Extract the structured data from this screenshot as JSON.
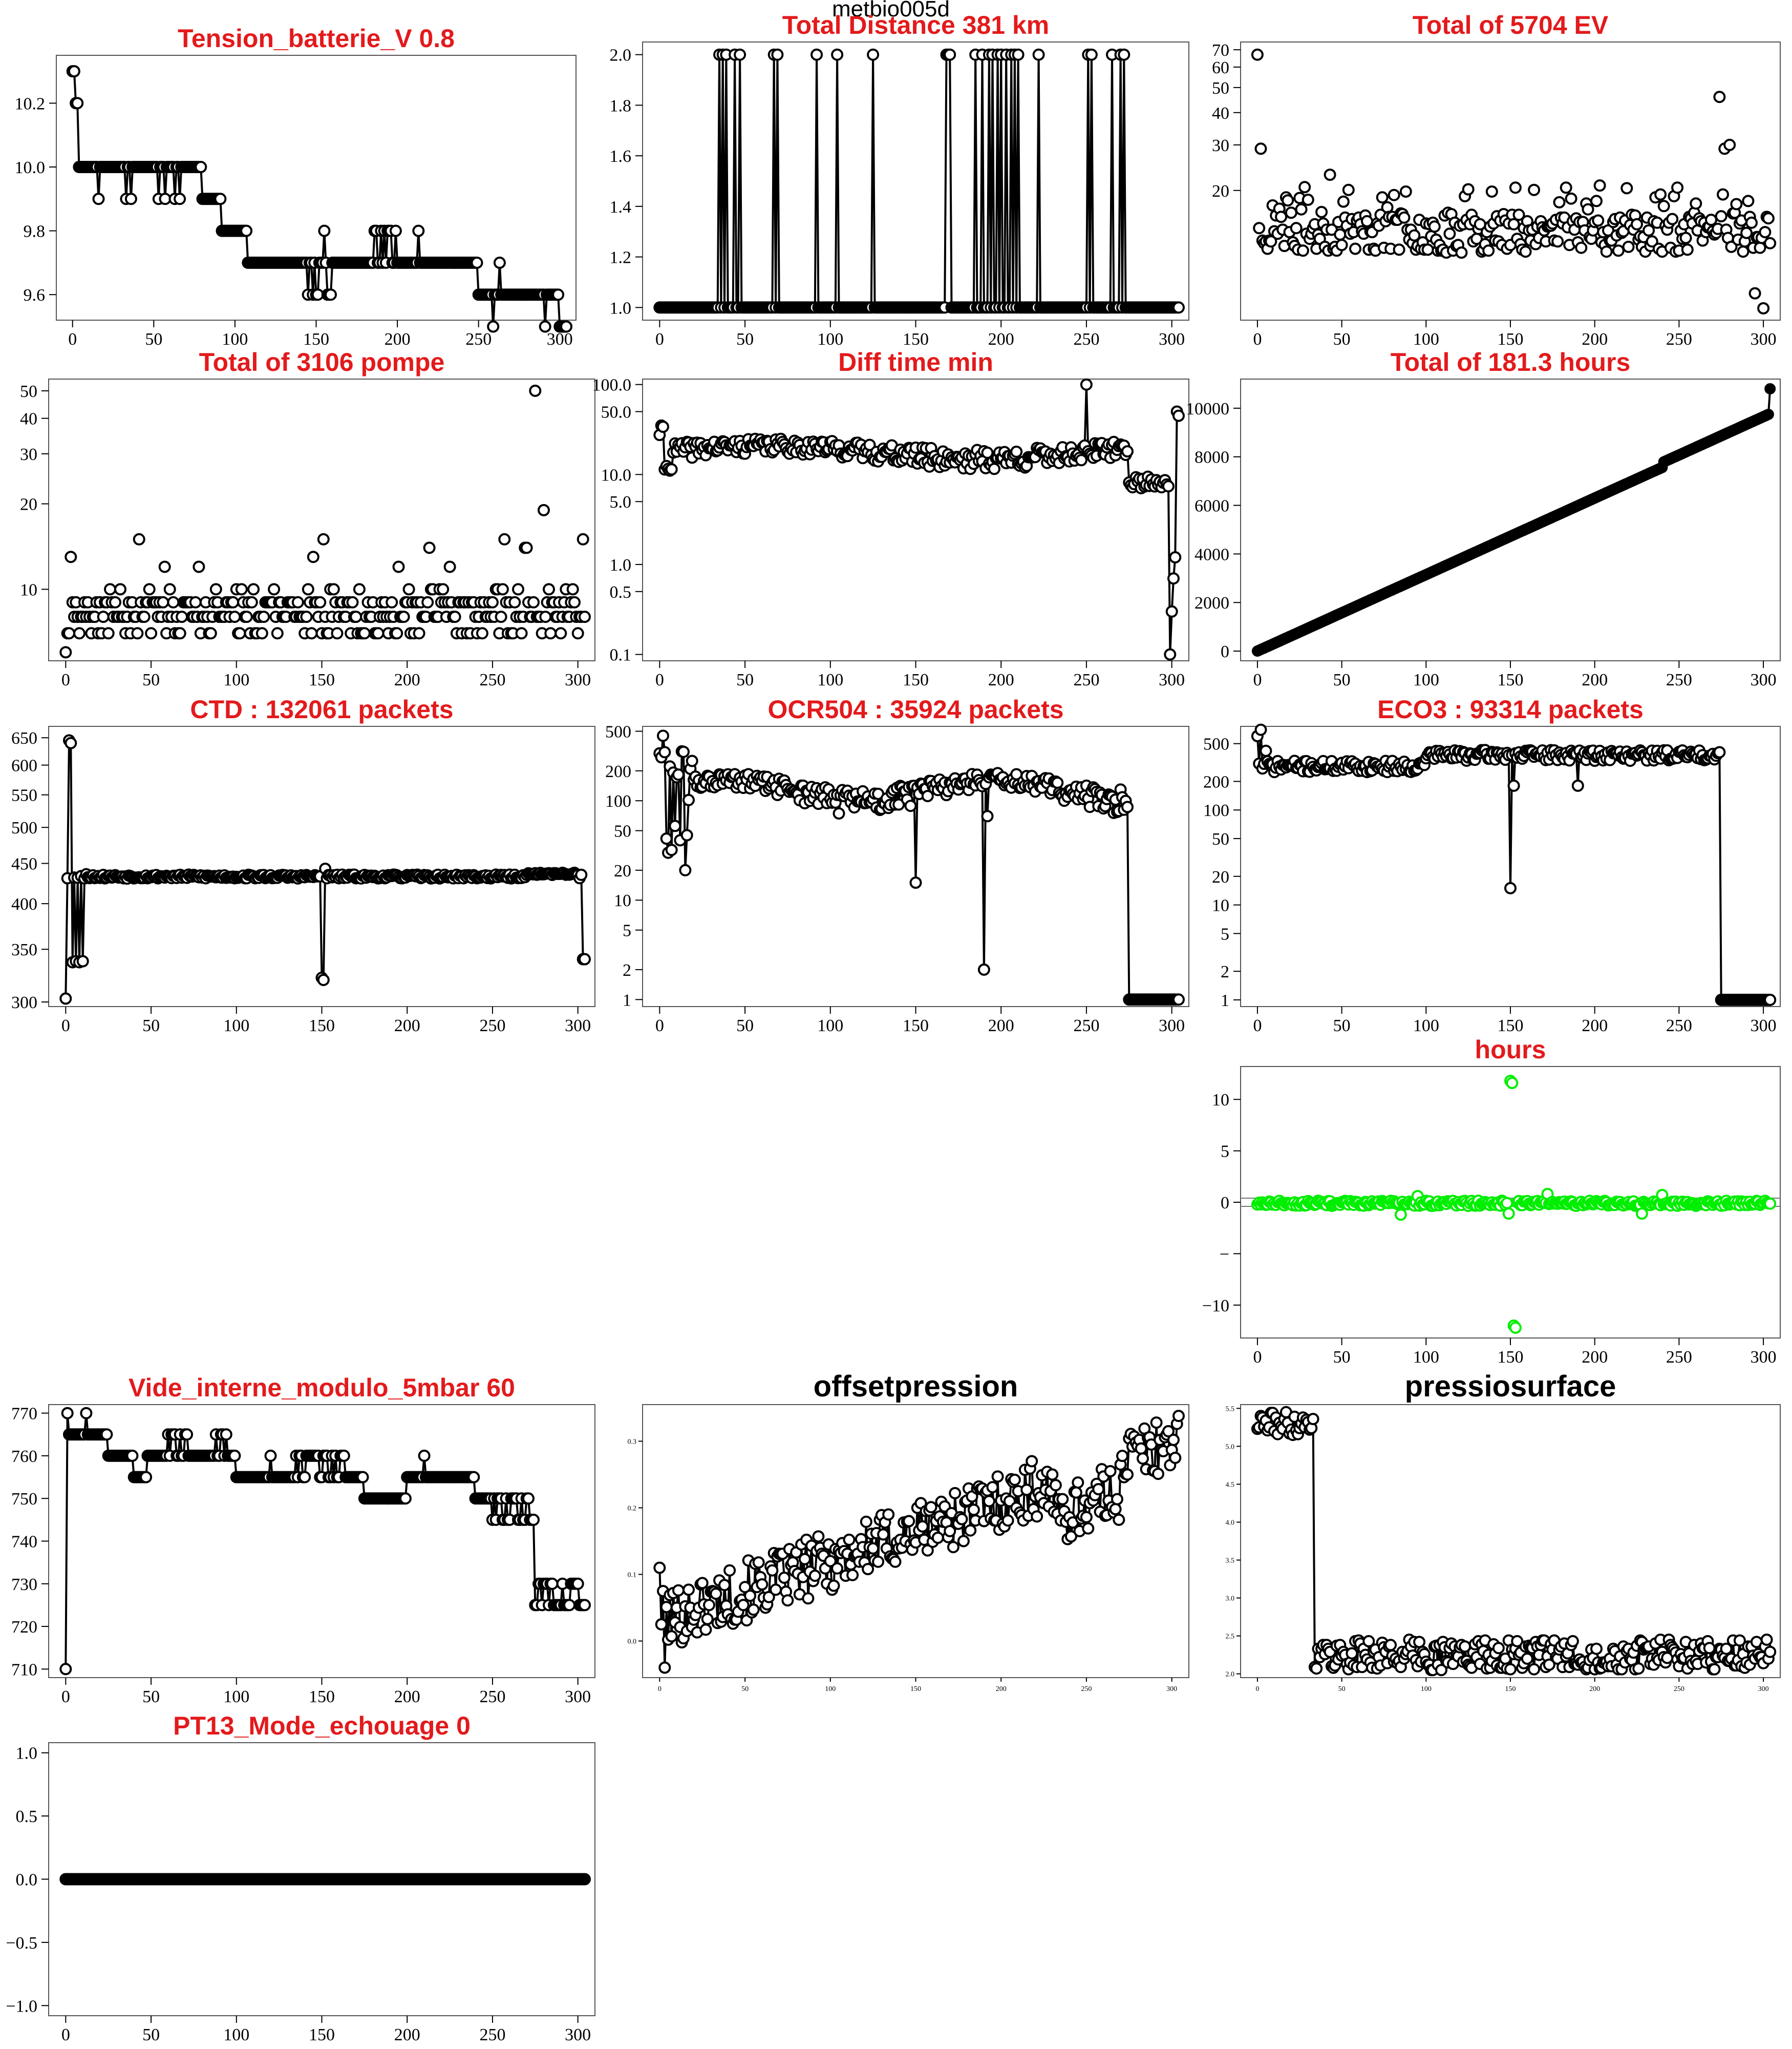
{
  "figure": {
    "title": "metbio005d"
  },
  "chart_data": [
    {
      "id": "tension",
      "type": "line",
      "title": "Tension_batterie_V 0.8",
      "xlim": [
        -10,
        310
      ],
      "ylim": [
        9.52,
        10.35
      ],
      "x_ticks": [
        0,
        50,
        100,
        150,
        200,
        250,
        300
      ],
      "y_ticks": [
        9.6,
        9.8,
        10.0,
        10.2
      ],
      "y_tick_labels": [
        "9.6",
        "9.8",
        "10.0",
        "10.2"
      ],
      "gen": "tension"
    },
    {
      "id": "distance",
      "type": "line",
      "title": "Total Distance  381  km",
      "xlim": [
        -10,
        310
      ],
      "ylim": [
        0.95,
        2.05
      ],
      "x_ticks": [
        0,
        50,
        100,
        150,
        200,
        250,
        300
      ],
      "y_ticks": [
        1.0,
        1.2,
        1.4,
        1.6,
        1.8,
        2.0
      ],
      "y_tick_labels": [
        "1.0",
        "1.2",
        "1.4",
        "1.6",
        "1.8",
        "2.0"
      ],
      "gen": "distance"
    },
    {
      "id": "ev",
      "type": "scatter",
      "title": "Total of  5704  EV",
      "log": true,
      "xlim": [
        -10,
        310
      ],
      "ylim": [
        6.3,
        75
      ],
      "x_ticks": [
        0,
        50,
        100,
        150,
        200,
        250,
        300
      ],
      "y_ticks": [
        20,
        30,
        40,
        50,
        60,
        70
      ],
      "y_tick_labels": [
        "20",
        "30",
        "40",
        "50",
        "60",
        "70"
      ],
      "gen": "ev"
    },
    {
      "id": "pompe",
      "type": "scatter",
      "title": "Total of  3106  pompe",
      "log": true,
      "xlim": [
        -10,
        310
      ],
      "ylim": [
        5.6,
        55
      ],
      "x_ticks": [
        0,
        50,
        100,
        150,
        200,
        250,
        300
      ],
      "y_ticks": [
        10,
        20,
        30,
        40,
        50
      ],
      "y_tick_labels": [
        "10",
        "20",
        "30",
        "40",
        "50"
      ],
      "gen": "pompe"
    },
    {
      "id": "difftime",
      "type": "line",
      "title": "Diff time min",
      "log": true,
      "xlim": [
        -10,
        310
      ],
      "ylim": [
        0.085,
        115
      ],
      "x_ticks": [
        0,
        50,
        100,
        150,
        200,
        250,
        300
      ],
      "y_ticks": [
        0.1,
        0.5,
        1.0,
        5.0,
        10.0,
        50.0,
        100.0
      ],
      "y_tick_labels": [
        "0.1",
        "0.5",
        "1.0",
        "5.0",
        "10.0",
        "50.0",
        "100.0"
      ],
      "gen": "difftime"
    },
    {
      "id": "hours",
      "type": "line",
      "title": "Total of  181.3  hours",
      "xlim": [
        -10,
        310
      ],
      "ylim": [
        -400,
        11200
      ],
      "x_ticks": [
        0,
        50,
        100,
        150,
        200,
        250,
        300
      ],
      "y_ticks": [
        0,
        2000,
        4000,
        6000,
        8000,
        10000
      ],
      "y_tick_labels": [
        "0",
        "2000",
        "4000",
        "6000",
        "8000",
        "10000"
      ],
      "gen": "hours"
    },
    {
      "id": "ctd",
      "type": "line",
      "title": "CTD  : 132061  packets",
      "log": true,
      "xlim": [
        -10,
        310
      ],
      "ylim": [
        296,
        672
      ],
      "x_ticks": [
        0,
        50,
        100,
        150,
        200,
        250,
        300
      ],
      "y_ticks": [
        300,
        350,
        400,
        450,
        500,
        550,
        600,
        650
      ],
      "y_tick_labels": [
        "300",
        "350",
        "400",
        "450",
        "500",
        "550",
        "600",
        "650"
      ],
      "gen": "ctd"
    },
    {
      "id": "ocr",
      "type": "line",
      "title": "OCR504  : 35924  packets",
      "log": true,
      "xlim": [
        -10,
        310
      ],
      "ylim": [
        0.85,
        560
      ],
      "x_ticks": [
        0,
        50,
        100,
        150,
        200,
        250,
        300
      ],
      "y_ticks": [
        1,
        2,
        5,
        10,
        20,
        50,
        100,
        200,
        500
      ],
      "y_tick_labels": [
        "1",
        "2",
        "5",
        "10",
        "20",
        "50",
        "100",
        "200",
        "500"
      ],
      "gen": "ocr"
    },
    {
      "id": "eco",
      "type": "line",
      "title": "ECO3  : 93314  packets",
      "log": true,
      "xlim": [
        -10,
        310
      ],
      "ylim": [
        0.85,
        760
      ],
      "x_ticks": [
        0,
        50,
        100,
        150,
        200,
        250,
        300
      ],
      "y_ticks": [
        1,
        2,
        5,
        10,
        20,
        50,
        100,
        200,
        500
      ],
      "y_tick_labels": [
        "1",
        "2",
        "5",
        "10",
        "20",
        "50",
        "100",
        "200",
        "500"
      ],
      "gen": "eco"
    },
    {
      "id": "hours2",
      "type": "scatter",
      "title": "hours",
      "color": "#00ee00",
      "xlim": [
        -10,
        310
      ],
      "ylim": [
        -13.2,
        13.2
      ],
      "x_ticks": [
        0,
        50,
        100,
        150,
        200,
        250,
        300
      ],
      "y_ticks": [
        -10,
        -5,
        0,
        5,
        10
      ],
      "y_tick_labels": [
        "−10",
        "−",
        "0",
        "5",
        "10"
      ],
      "hlines": [
        0.4,
        -0.4
      ],
      "gen": "hours2"
    },
    {
      "id": "vide",
      "type": "line",
      "title": "Vide_interne_modulo_5mbar 60",
      "xlim": [
        -10,
        310
      ],
      "ylim": [
        708,
        772
      ],
      "x_ticks": [
        0,
        50,
        100,
        150,
        200,
        250,
        300
      ],
      "y_ticks": [
        710,
        720,
        730,
        740,
        750,
        760,
        770
      ],
      "y_tick_labels": [
        "710",
        "720",
        "730",
        "740",
        "750",
        "760",
        "770"
      ],
      "gen": "vide"
    },
    {
      "id": "offset",
      "type": "line",
      "title": "offsetpression",
      "small_ticks": true,
      "xlim": [
        -10,
        310
      ],
      "ylim": [
        -0.055,
        0.355
      ],
      "x_ticks": [
        0,
        50,
        100,
        150,
        200,
        250,
        300
      ],
      "y_ticks": [
        0.0,
        0.1,
        0.2,
        0.3
      ],
      "y_tick_labels": [
        "0.0",
        "0.1",
        "0.2",
        "0.3"
      ],
      "gen": "offset"
    },
    {
      "id": "surface",
      "type": "line",
      "title": "pressiosurface",
      "small_ticks": true,
      "xlim": [
        -10,
        310
      ],
      "ylim": [
        1.95,
        5.55
      ],
      "x_ticks": [
        0,
        50,
        100,
        150,
        200,
        250,
        300
      ],
      "y_ticks": [
        2.0,
        2.5,
        3.0,
        3.5,
        4.0,
        4.5,
        5.0,
        5.5
      ],
      "y_tick_labels": [
        "2.0",
        "2.5",
        "3.0",
        "3.5",
        "4.0",
        "4.5",
        "5.0",
        "5.5"
      ],
      "gen": "surface"
    },
    {
      "id": "pt13",
      "type": "line",
      "title": "PT13_Mode_echouage  0",
      "xlim": [
        -10,
        310
      ],
      "ylim": [
        -1.08,
        1.08
      ],
      "x_ticks": [
        0,
        50,
        100,
        150,
        200,
        250,
        300
      ],
      "y_ticks": [
        -1.0,
        -0.5,
        0.0,
        0.5,
        1.0
      ],
      "y_tick_labels": [
        "−1.0",
        "−0.5",
        "0.0",
        "0.5",
        "1.0"
      ],
      "gen": "pt13"
    }
  ]
}
